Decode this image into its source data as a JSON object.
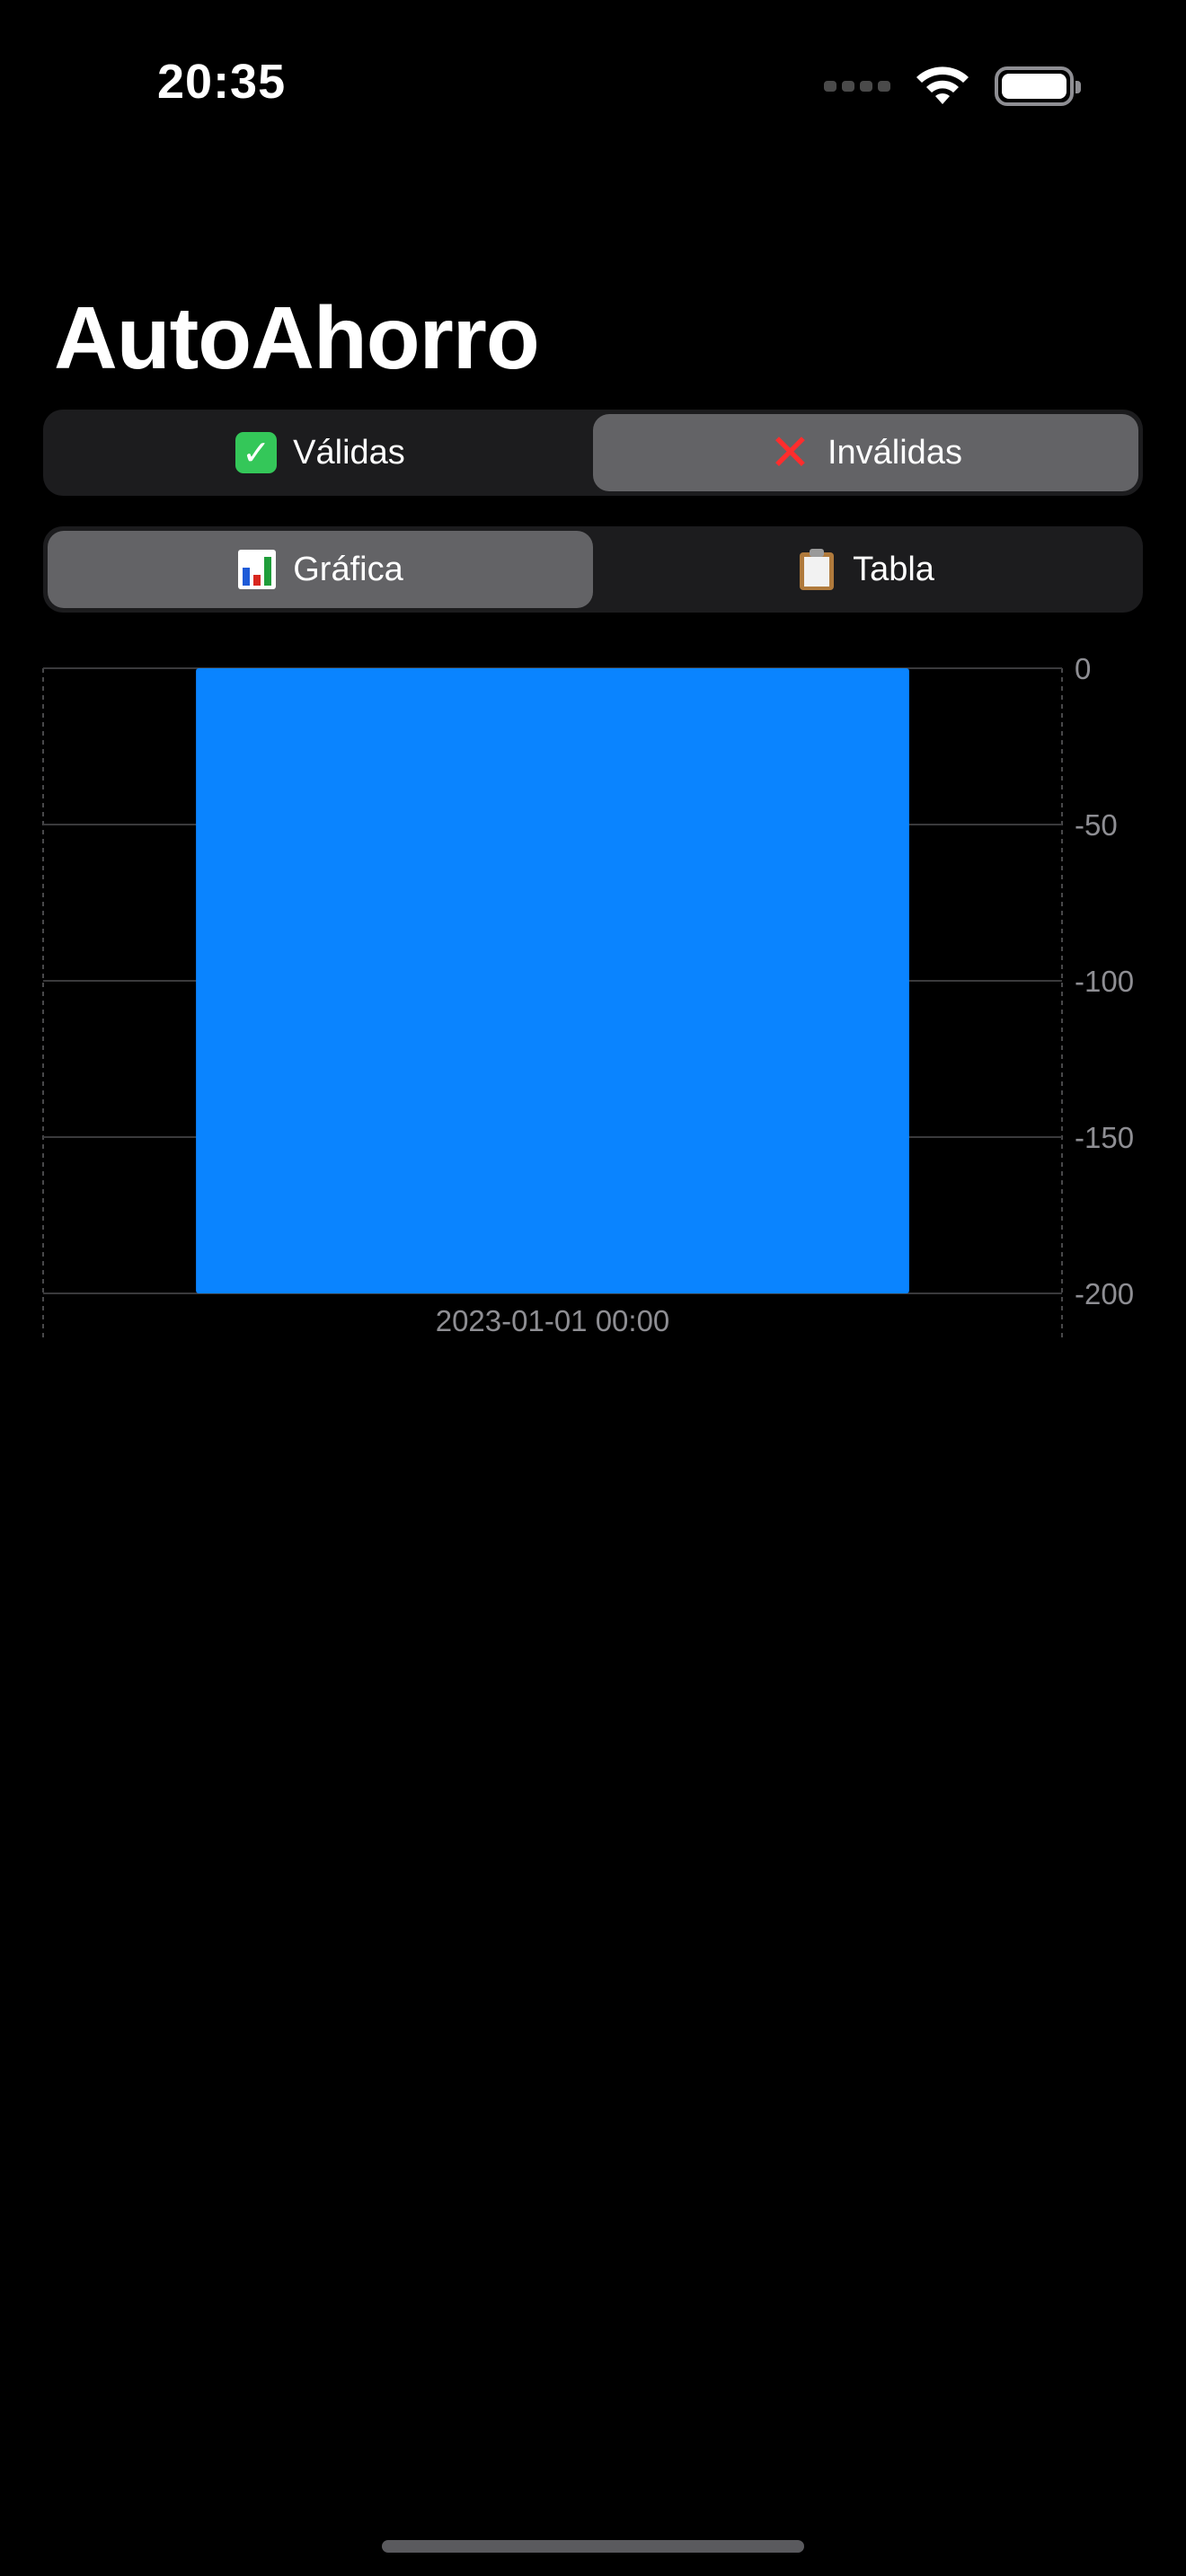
{
  "status_bar": {
    "time": "20:35"
  },
  "app": {
    "title": "AutoAhorro"
  },
  "validity_segment": {
    "options": [
      {
        "label": "Válidas",
        "icon": "check-mark-icon",
        "selected": false
      },
      {
        "label": "Inválidas",
        "icon": "cross-mark-icon",
        "selected": true
      }
    ]
  },
  "view_segment": {
    "options": [
      {
        "label": "Gráfica",
        "icon": "bar-chart-icon",
        "selected": true
      },
      {
        "label": "Tabla",
        "icon": "clipboard-icon",
        "selected": false
      }
    ]
  },
  "colors": {
    "bar": "#0a84ff",
    "background": "#000000",
    "segment_bg": "#1c1c1e",
    "segment_active": "#636366"
  },
  "chart_data": {
    "type": "bar",
    "categories": [
      "2023-01-01 00:00"
    ],
    "values": [
      -200
    ],
    "title": "",
    "xlabel": "",
    "ylabel": "",
    "ylim": [
      -200,
      0
    ],
    "yticks": [
      0,
      -50,
      -100,
      -150,
      -200
    ],
    "ytick_labels": [
      "0",
      "-50",
      "-100",
      "-150",
      "-200"
    ],
    "grid": true,
    "y_axis_position": "right"
  }
}
